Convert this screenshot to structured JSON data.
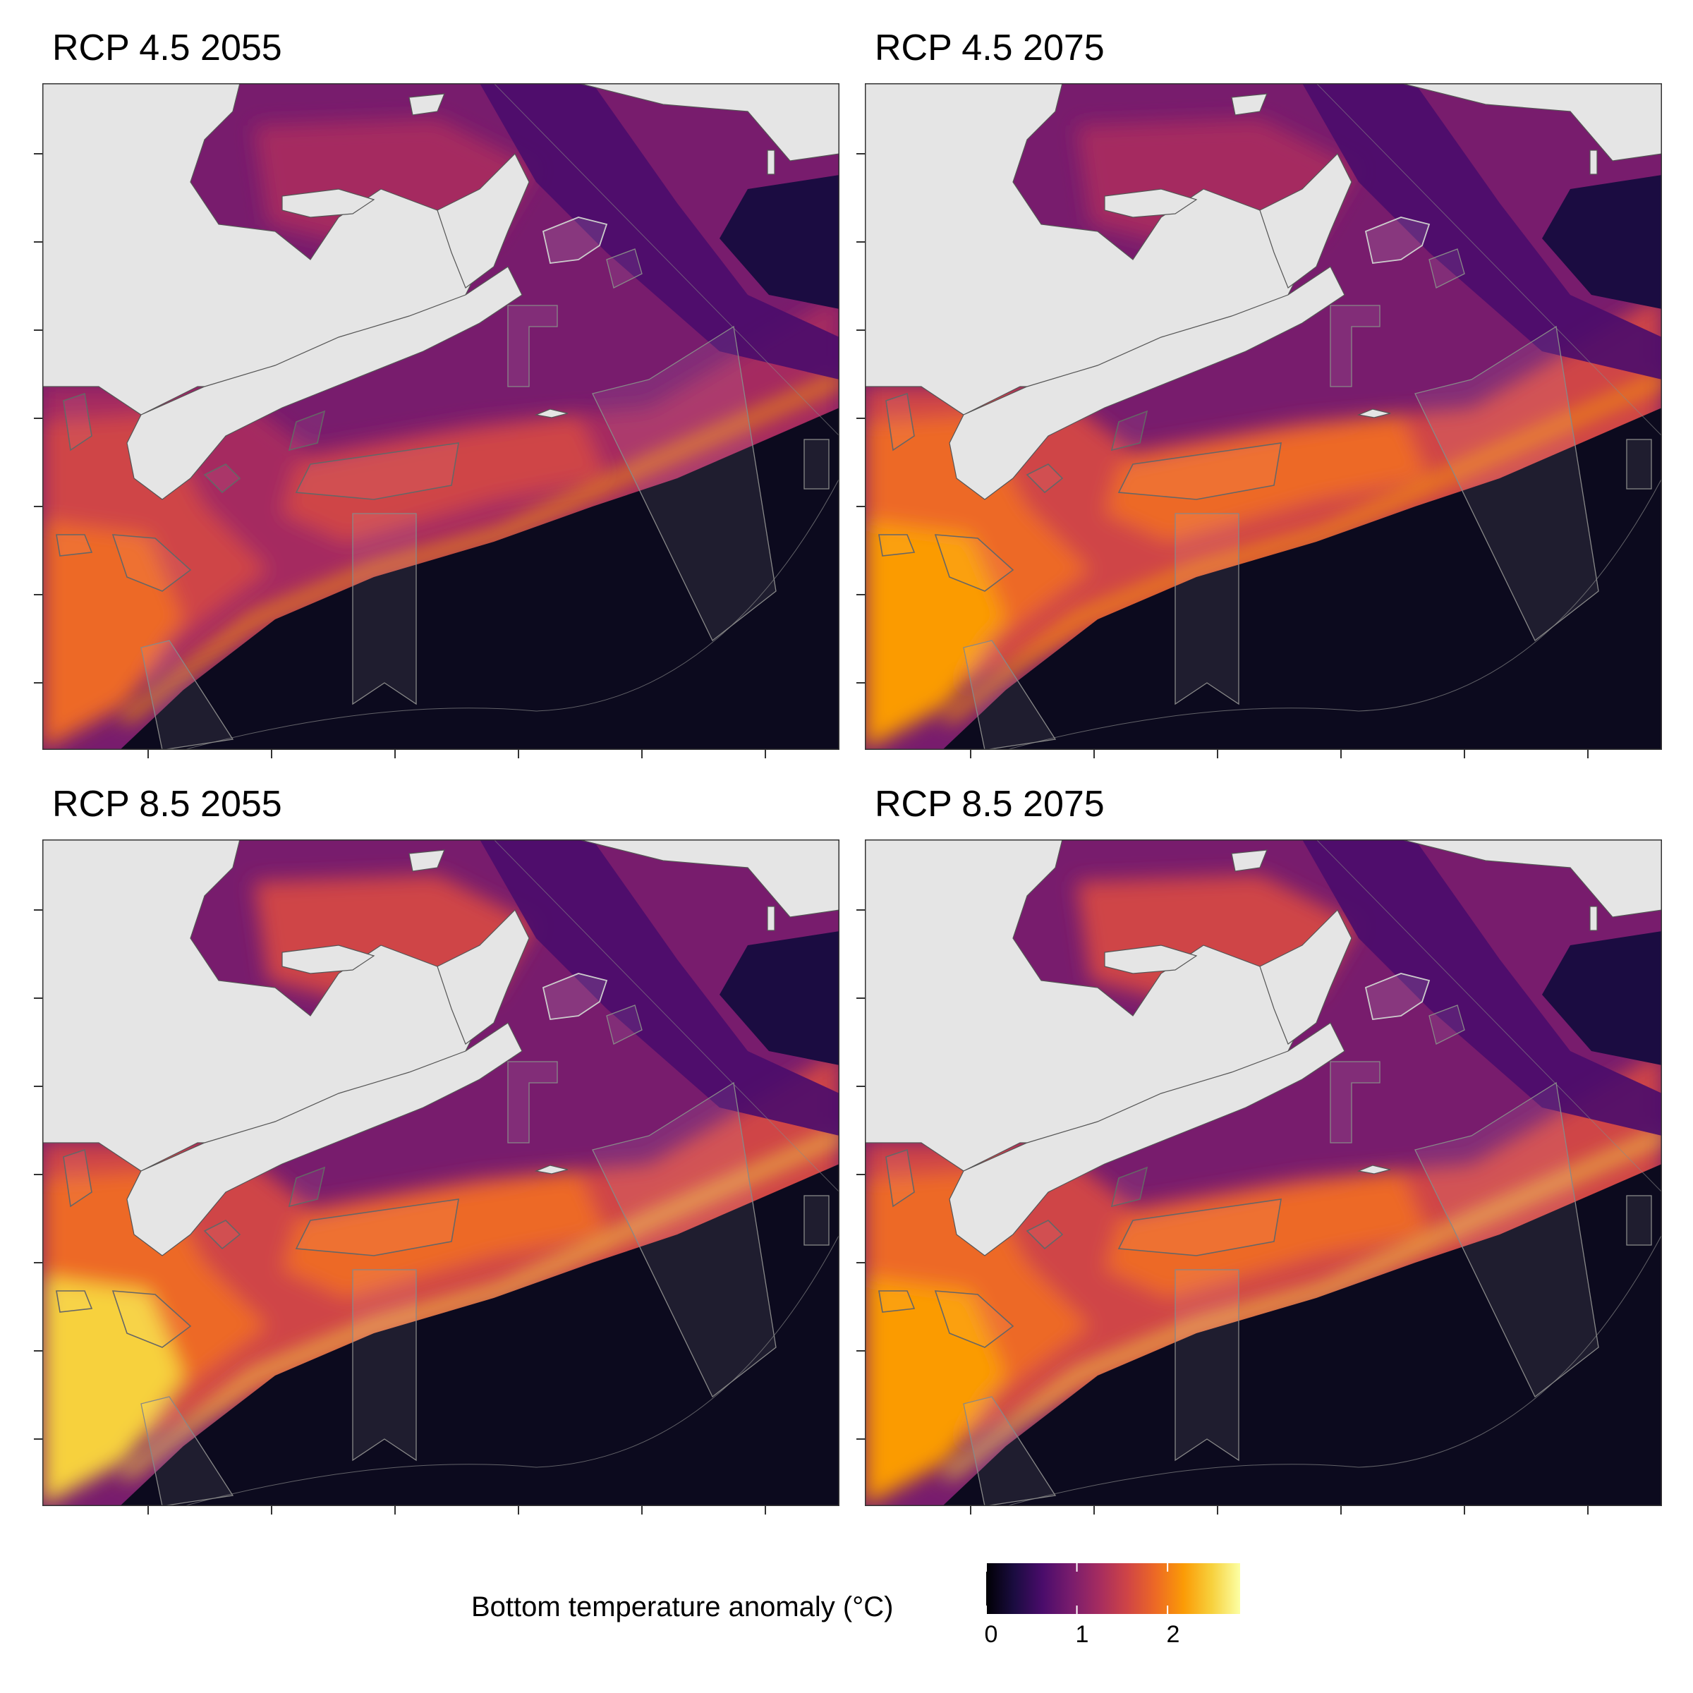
{
  "panels": [
    {
      "title": "RCP 4.5 2055",
      "warm_level": 0.45
    },
    {
      "title": "RCP 4.5 2075",
      "warm_level": 0.7
    },
    {
      "title": "RCP 8.5 2055",
      "warm_level": 0.85
    },
    {
      "title": "RCP 8.5 2075",
      "warm_level": 0.75
    }
  ],
  "legend": {
    "title": "Bottom temperature anomaly (°C)",
    "ticks": [
      "0",
      "1",
      "2"
    ],
    "tick_values": [
      0,
      1,
      2
    ],
    "range": [
      0,
      2.8
    ],
    "colormap": "inferno",
    "colors": [
      "#000004",
      "#1b0c41",
      "#4a0c6b",
      "#781c6d",
      "#a52c60",
      "#cf4446",
      "#ed6925",
      "#fb9b06",
      "#f7d13d",
      "#fcffa4"
    ]
  },
  "map_colors": {
    "land": "#e5e5e5",
    "deep_ocean": "#0c0a1e",
    "polygon_outline": "#666666",
    "frame": "#333333"
  }
}
